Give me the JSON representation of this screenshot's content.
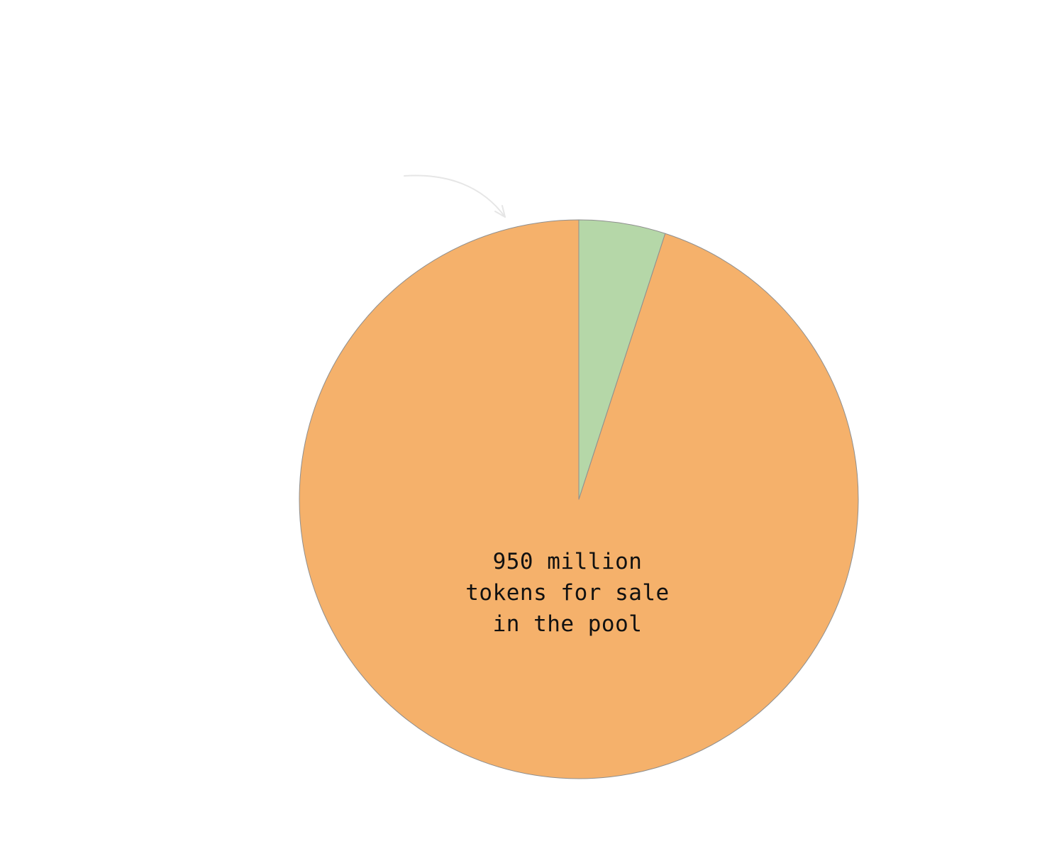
{
  "chart_data": {
    "type": "pie",
    "start_angle_deg": 0,
    "direction": "counterclockwise",
    "slices": [
      {
        "value": 950,
        "color": "#F5B16B",
        "label_lines": [
          "950 million",
          "tokens for sale",
          "in the pool"
        ]
      },
      {
        "value": 50,
        "color": "#B5D7A8",
        "label_lines": []
      }
    ],
    "annotations": [
      {
        "type": "arrow",
        "target_slice": 1,
        "color": "#E6E6E6"
      }
    ]
  }
}
